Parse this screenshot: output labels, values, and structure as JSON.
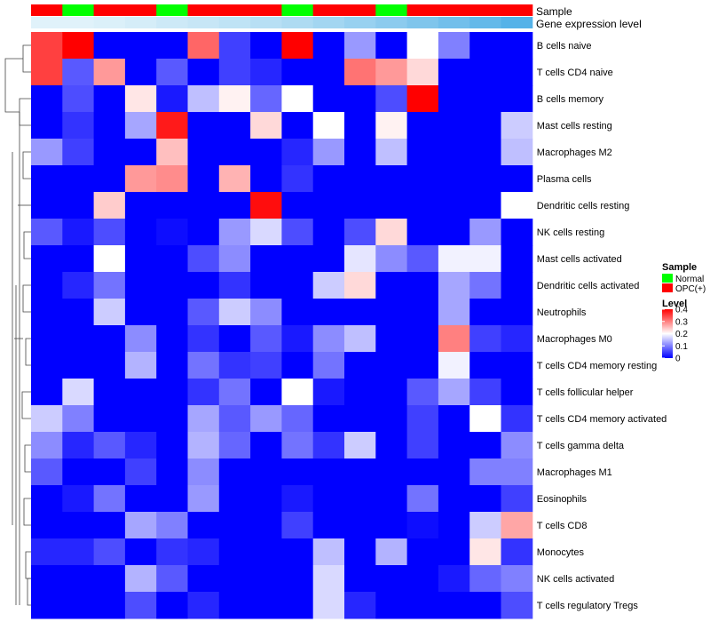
{
  "chart_data": {
    "type": "heatmap",
    "rows": [
      "B cells naive",
      "T cells CD4 naive",
      "B cells memory",
      "Mast cells resting",
      "Macrophages M2",
      "Plasma cells",
      "Dendritic cells resting",
      "NK cells resting",
      "Mast cells activated",
      "Dendritic cells activated",
      "Neutrophils",
      "Macrophages M0",
      "T cells CD4 memory resting",
      "T cells follicular helper",
      "T cells CD4 memory activated",
      "T cells gamma delta",
      "Macrophages M1",
      "Eosinophils",
      "T cells CD8",
      "Monocytes",
      "NK cells activated",
      "T cells regulatory  Tregs"
    ],
    "annotation_rows": [
      "Sample",
      "Gene expression level"
    ],
    "sample_groups": [
      "OPC(+)",
      "Normal",
      "OPC(+)",
      "OPC(+)",
      "Normal",
      "OPC(+)",
      "OPC(+)",
      "OPC(+)",
      "Normal",
      "OPC(+)",
      "OPC(+)",
      "Normal",
      "OPC(+)",
      "OPC(+)",
      "OPC(+)",
      "OPC(+)"
    ],
    "gene_expression_colors": [
      "#e0f2fa",
      "#e0f2fa",
      "#dbf0f9",
      "#d5edf8",
      "#cde9f7",
      "#c7e6f6",
      "#bfe3f5",
      "#b7dff4",
      "#aedbf2",
      "#a3d6f1",
      "#98d1f0",
      "#8ccbee",
      "#7fc5ec",
      "#72bfeb",
      "#64b9e9",
      "#55b2e8"
    ],
    "values": [
      [
        0.35,
        0.4,
        0.0,
        0.0,
        0.0,
        0.32,
        0.05,
        0.0,
        0.4,
        0.0,
        0.12,
        0.0,
        0.2,
        0.1,
        0.0,
        0.0
      ],
      [
        0.35,
        0.07,
        0.28,
        0.0,
        0.07,
        0.0,
        0.05,
        0.03,
        0.0,
        0.0,
        0.31,
        0.28,
        0.23,
        0.0,
        0.0,
        0.0
      ],
      [
        0.0,
        0.06,
        0.0,
        0.22,
        0.02,
        0.15,
        0.21,
        0.08,
        0.2,
        0.0,
        0.0,
        0.06,
        0.4,
        0.0,
        0.0,
        0.0
      ],
      [
        0.0,
        0.04,
        0.0,
        0.13,
        0.38,
        0.0,
        0.0,
        0.23,
        0.0,
        0.2,
        0.0,
        0.21,
        0.0,
        0.0,
        0.0,
        0.16
      ],
      [
        0.12,
        0.05,
        0.0,
        0.0,
        0.25,
        0.0,
        0.0,
        0.0,
        0.03,
        0.12,
        0.0,
        0.15,
        0.0,
        0.0,
        0.0,
        0.15
      ],
      [
        0.0,
        0.0,
        0.0,
        0.28,
        0.29,
        0.0,
        0.26,
        0.0,
        0.04,
        0.0,
        0.0,
        0.0,
        0.0,
        0.0,
        0.0,
        0.0
      ],
      [
        0.0,
        0.0,
        0.24,
        0.0,
        0.0,
        0.0,
        0.0,
        0.39,
        0.0,
        0.0,
        0.0,
        0.0,
        0.0,
        0.0,
        0.0,
        0.2
      ],
      [
        0.07,
        0.02,
        0.06,
        0.0,
        0.01,
        0.0,
        0.12,
        0.17,
        0.06,
        0.0,
        0.06,
        0.23,
        0.0,
        0.0,
        0.12,
        0.0
      ],
      [
        0.0,
        0.0,
        0.2,
        0.0,
        0.0,
        0.06,
        0.11,
        0.0,
        0.0,
        0.0,
        0.18,
        0.11,
        0.07,
        0.19,
        0.19,
        0.0
      ],
      [
        0.0,
        0.03,
        0.09,
        0.0,
        0.0,
        0.0,
        0.04,
        0.0,
        0.0,
        0.16,
        0.23,
        0.0,
        0.0,
        0.13,
        0.09,
        0.0
      ],
      [
        0.0,
        0.0,
        0.16,
        0.0,
        0.0,
        0.07,
        0.16,
        0.11,
        0.0,
        0.0,
        0.0,
        0.0,
        0.0,
        0.13,
        0.0,
        0.0
      ],
      [
        0.0,
        0.0,
        0.0,
        0.11,
        0.0,
        0.04,
        0.0,
        0.07,
        0.02,
        0.11,
        0.15,
        0.0,
        0.0,
        0.3,
        0.05,
        0.03
      ],
      [
        0.0,
        0.0,
        0.0,
        0.14,
        0.0,
        0.09,
        0.04,
        0.05,
        0.0,
        0.09,
        0.0,
        0.0,
        0.0,
        0.19,
        0.0,
        0.0
      ],
      [
        0.0,
        0.17,
        0.0,
        0.0,
        0.0,
        0.04,
        0.09,
        0.0,
        0.2,
        0.02,
        0.0,
        0.0,
        0.07,
        0.13,
        0.05,
        0.0
      ],
      [
        0.16,
        0.1,
        0.0,
        0.0,
        0.0,
        0.13,
        0.07,
        0.12,
        0.08,
        0.0,
        0.0,
        0.0,
        0.05,
        0.0,
        0.2,
        0.04
      ],
      [
        0.11,
        0.03,
        0.07,
        0.03,
        0.0,
        0.14,
        0.08,
        0.0,
        0.09,
        0.04,
        0.16,
        0.0,
        0.05,
        0.0,
        0.0,
        0.11
      ],
      [
        0.07,
        0.0,
        0.0,
        0.05,
        0.0,
        0.11,
        0.0,
        0.0,
        0.0,
        0.0,
        0.0,
        0.0,
        0.0,
        0.0,
        0.1,
        0.1
      ],
      [
        0.0,
        0.02,
        0.09,
        0.0,
        0.0,
        0.12,
        0.0,
        0.0,
        0.02,
        0.0,
        0.0,
        0.0,
        0.09,
        0.0,
        0.0,
        0.05
      ],
      [
        0.0,
        0.0,
        0.0,
        0.13,
        0.1,
        0.0,
        0.0,
        0.0,
        0.05,
        0.0,
        0.0,
        0.0,
        0.01,
        0.0,
        0.16,
        0.27
      ],
      [
        0.03,
        0.03,
        0.06,
        0.0,
        0.04,
        0.03,
        0.0,
        0.0,
        0.0,
        0.15,
        0.0,
        0.14,
        0.0,
        0.0,
        0.22,
        0.04
      ],
      [
        0.0,
        0.0,
        0.0,
        0.14,
        0.07,
        0.0,
        0.0,
        0.0,
        0.0,
        0.17,
        0.0,
        0.0,
        0.0,
        0.02,
        0.08,
        0.1
      ],
      [
        0.0,
        0.0,
        0.0,
        0.06,
        0.0,
        0.03,
        0.0,
        0.0,
        0.0,
        0.17,
        0.03,
        0.0,
        0.0,
        0.0,
        0.0,
        0.06
      ]
    ],
    "color_scale": {
      "min": 0,
      "max": 0.4,
      "low": "#0000ff",
      "mid": "#ffffff",
      "high": "#ff0000"
    },
    "legend": {
      "sample_title": "Sample",
      "sample_items": [
        {
          "label": "Normal",
          "color": "#00ff00"
        },
        {
          "label": "OPC(+)",
          "color": "#ff0000"
        }
      ],
      "level_title": "Level",
      "level_ticks": [
        "0.4",
        "0.3",
        "0.2",
        "0.1",
        "0"
      ],
      "level_tick_values": [
        0.4,
        0.3,
        0.2,
        0.1,
        0
      ]
    },
    "dendrogram": true,
    "legend_position": "right"
  }
}
